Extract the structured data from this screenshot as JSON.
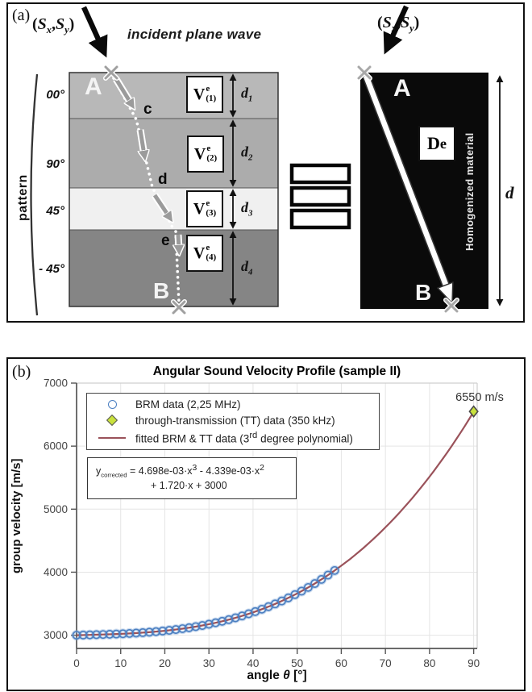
{
  "panel_a": {
    "label": "(a)",
    "incident_wave_label": "incident plane wave",
    "source_label_html": "(<i>S</i><sub><i>x</i></sub>,<i>S</i><sub><i>y</i></sub>)",
    "pattern_label": "pattern",
    "layers": [
      {
        "angle": "00°",
        "color": "#b8b8b8",
        "v_html": "V<span class='ss'><span>e</span><span>(1)</span></span>",
        "d_html": "d<sub>1</sub>"
      },
      {
        "angle": "90°",
        "color": "#acacac",
        "v_html": "V<span class='ss'><span>e</span><span>(2)</span></span>",
        "d_html": "d<sub>2</sub>"
      },
      {
        "angle": "45°",
        "color": "#f0f0f0",
        "v_html": "V<span class='ss'><span>e</span><span>(3)</span></span>",
        "d_html": "d<sub>3</sub>"
      },
      {
        "angle": "- 45°",
        "color": "#858585",
        "v_html": "V<span class='ss'><span>e</span><span>(4)</span></span>",
        "d_html": "d<sub>4</sub>"
      }
    ],
    "point_a": "A",
    "point_b": "B",
    "ray_point_c": "c",
    "ray_point_d": "d",
    "ray_point_e": "e",
    "homogenized_label": "Homogenized material",
    "de_html": "D<sup>e</sup>",
    "d_total": "d"
  },
  "panel_b": {
    "label": "(b)"
  },
  "chart_data": {
    "type": "scatter",
    "title": "Angular Sound Velocity Profile (sample II)",
    "xlabel": "angle θ [°]",
    "xlabel_html": "angle <i>θ</i> [°]",
    "ylabel": "group velocity [m/s]",
    "xlim": [
      0,
      90.8
    ],
    "ylim": [
      2790,
      7000
    ],
    "xticks": [
      0,
      10,
      20,
      30,
      40,
      50,
      60,
      70,
      80,
      90
    ],
    "yticks": [
      3000,
      4000,
      5000,
      6000,
      7000
    ],
    "grid": true,
    "legend_position": "top-left-inside",
    "legend": [
      {
        "marker": "circle",
        "label": "BRM data (2,25 MHz)"
      },
      {
        "marker": "diamond",
        "label": "through-transmission (TT) data (350 kHz)"
      },
      {
        "marker": "line",
        "label_html": "fitted BRM &amp; TT data (3<sup>rd</sup> degree polynomial)"
      }
    ],
    "equation_lines_html": [
      "y<sub>corrected</sub> = 4.698e-03·x<sup>3</sup> - 4.339e-03·x<sup>2</sup>",
      "+ 1.720·x + 3000"
    ],
    "annotation": {
      "x": 90,
      "y": 6550,
      "text": "6550 m/s"
    },
    "colors": {
      "circle": "#4b7fc1",
      "circle_halo": "rgba(125,165,215,0.4)",
      "diamond": "#c9e13c",
      "diamond_edge": "#4a4a4a",
      "line": "#9a525a",
      "grid": "#e5e5e5",
      "axis": "#555555"
    },
    "series": [
      {
        "name": "BRM data (2,25 MHz)",
        "type": "scatter",
        "marker": "circle",
        "color": "#4b7fc1",
        "x": [
          0,
          1.5,
          3,
          4.5,
          6,
          7.5,
          9,
          10.5,
          12,
          13.5,
          15,
          16.5,
          18,
          19.5,
          21,
          22.5,
          24,
          25.5,
          27,
          28.5,
          30,
          31.5,
          33,
          34.5,
          36,
          37.5,
          39,
          40.5,
          42,
          43.5,
          45,
          46.5,
          48,
          49.5,
          51,
          52.5,
          54,
          55.5,
          57,
          58.5
        ],
        "y": [
          3000,
          3002.6,
          3005.2,
          3008.1,
          3011.2,
          3014.6,
          3018.6,
          3023.0,
          3028.1,
          3034.0,
          3040.7,
          3048.3,
          3057.0,
          3066.7,
          3077.7,
          3090.0,
          3103.7,
          3118.9,
          3135.7,
          3154.2,
          3174.5,
          3196.8,
          3220.9,
          3247.1,
          3275.5,
          3306.1,
          3339.2,
          3374.6,
          3412.7,
          3453.3,
          3496.7,
          3543.0,
          3592.1,
          3644.2,
          3699.6,
          3758.1,
          3820.1,
          3885.4,
          3954.3,
          4026.7
        ]
      },
      {
        "name": "through-transmission (TT) data (350 kHz)",
        "type": "scatter",
        "marker": "diamond",
        "color": "#c9e13c",
        "x": [
          90
        ],
        "y": [
          6550
        ]
      },
      {
        "name": "fitted BRM & TT data (3rd degree polynomial)",
        "type": "line",
        "color": "#9a525a",
        "poly_coeffs": [
          0.004698,
          -0.004339,
          1.72,
          3000
        ],
        "x_range": [
          0,
          90
        ]
      }
    ]
  }
}
